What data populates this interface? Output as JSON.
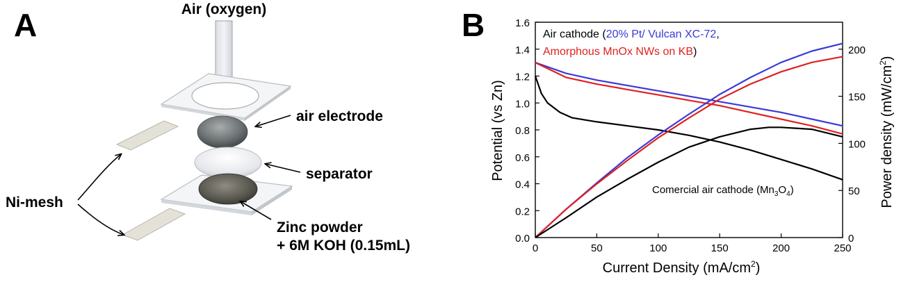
{
  "panel_a": {
    "letter": "A",
    "air_label": "Air (oxygen)",
    "air_electrode_label": "air electrode",
    "separator_label": "separator",
    "nimesh_label": "Ni-mesh",
    "zinc_line1": "Zinc powder",
    "zinc_line2": "+ 6M KOH (0.15mL)"
  },
  "panel_b": {
    "letter": "B",
    "legend_prefix": "Air cathode (",
    "legend_blue": "20% Pt/ Vulcan XC-72",
    "legend_comma": ",",
    "legend_red": "Amorphous MnOx NWs on KB",
    "legend_suffix": ")",
    "annotation_main": "Comercial air cathode (Mn",
    "annotation_sub": "3",
    "annotation_o": "O",
    "annotation_sub2": "4",
    "annotation_close": ")",
    "colors": {
      "blue": "#3a3ad8",
      "red": "#e02020",
      "black": "#000000"
    }
  },
  "chart_data": {
    "type": "line",
    "x_label_text": "Current Density (mA/cm",
    "x_label_sup": "2",
    "x_label_close": ")",
    "y_left_label": "Potential (vs Zn)",
    "y_right_label_text": "Power density  (mW/cm",
    "y_right_label_sup": "2",
    "y_right_label_close": ")",
    "xlim": [
      0,
      250
    ],
    "ylim_left": [
      0.0,
      1.6
    ],
    "ylim_right": [
      0,
      228.6
    ],
    "x_ticks": [
      0,
      50,
      100,
      150,
      200,
      250
    ],
    "x_tick_labels": [
      "0",
      "50",
      "100",
      "150",
      "200",
      "250"
    ],
    "y_left_ticks": [
      0.0,
      0.2,
      0.4,
      0.6,
      0.8,
      1.0,
      1.2,
      1.4,
      1.6
    ],
    "y_left_tick_labels": [
      "0.0",
      "0.2",
      "0.4",
      "0.6",
      "0.8",
      "1.0",
      "1.2",
      "1.4",
      "1.6"
    ],
    "y_right_ticks": [
      0,
      50,
      100,
      150,
      200
    ],
    "y_right_tick_labels": [
      "0",
      "50",
      "100",
      "150",
      "200"
    ],
    "series": [
      {
        "color": "blue",
        "axis": "left",
        "x": [
          0,
          25,
          50,
          75,
          100,
          125,
          150,
          175,
          200,
          225,
          250
        ],
        "y": [
          1.3,
          1.22,
          1.17,
          1.13,
          1.09,
          1.05,
          1.01,
          0.97,
          0.93,
          0.88,
          0.83
        ]
      },
      {
        "color": "red",
        "axis": "left",
        "x": [
          0,
          25,
          50,
          75,
          100,
          125,
          150,
          175,
          200,
          225,
          250
        ],
        "y": [
          1.3,
          1.19,
          1.14,
          1.1,
          1.06,
          1.02,
          0.98,
          0.93,
          0.88,
          0.83,
          0.77
        ]
      },
      {
        "color": "black",
        "axis": "left",
        "x": [
          0,
          5,
          10,
          20,
          30,
          50,
          75,
          100,
          125,
          150,
          175,
          200,
          225,
          250
        ],
        "y": [
          1.2,
          1.07,
          1.0,
          0.93,
          0.89,
          0.86,
          0.83,
          0.8,
          0.76,
          0.71,
          0.65,
          0.58,
          0.51,
          0.43
        ]
      },
      {
        "color": "blue",
        "axis": "right",
        "x": [
          0,
          25,
          50,
          75,
          100,
          125,
          150,
          175,
          200,
          225,
          250
        ],
        "y": [
          0,
          30,
          58,
          85,
          109,
          131,
          152,
          170,
          186,
          198,
          206
        ]
      },
      {
        "color": "red",
        "axis": "right",
        "x": [
          0,
          25,
          50,
          75,
          100,
          125,
          150,
          175,
          200,
          225,
          250
        ],
        "y": [
          0,
          30,
          57,
          82,
          106,
          127,
          147,
          163,
          176,
          186,
          192
        ]
      },
      {
        "color": "black",
        "axis": "right",
        "x": [
          0,
          25,
          50,
          75,
          100,
          125,
          150,
          175,
          190,
          200,
          225,
          250
        ],
        "y": [
          0,
          21,
          43,
          62,
          80,
          96,
          107,
          115,
          117,
          117,
          115,
          107
        ]
      }
    ]
  }
}
